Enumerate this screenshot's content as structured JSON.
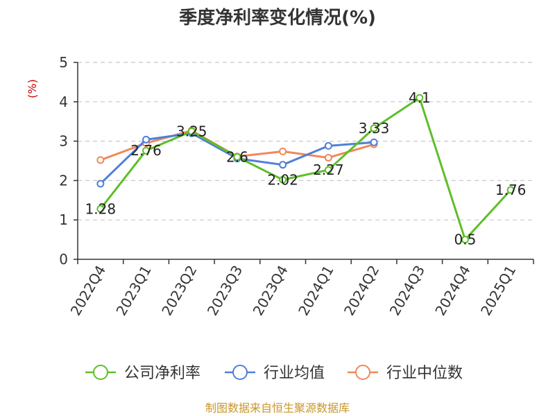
{
  "colors": {
    "company": "#5cbf26",
    "industry_avg": "#4f7fd9",
    "industry_median": "#f0885a",
    "unit": "#cc0000",
    "source": "#c9962a",
    "grid": "#c8c8c8",
    "axis": "#333333"
  },
  "source_note": "制图数据来自恒生聚源数据库",
  "chart_data": {
    "type": "line",
    "title": "季度净利率变化情况(%)",
    "ylabel": "(%)",
    "xlabel": "",
    "ylim": [
      0,
      5
    ],
    "yticks": [
      0,
      1,
      2,
      3,
      4,
      5
    ],
    "grid": true,
    "legend_position": "bottom",
    "categories": [
      "2022Q4",
      "2023Q1",
      "2023Q2",
      "2023Q3",
      "2023Q4",
      "2024Q1",
      "2024Q2",
      "2024Q3",
      "2024Q4",
      "2025Q1"
    ],
    "series": [
      {
        "name": "公司净利率",
        "color": "#5cbf26",
        "values": [
          1.28,
          2.76,
          3.25,
          2.6,
          2.02,
          2.27,
          3.33,
          4.1,
          0.5,
          1.76
        ],
        "labels": [
          "1.28",
          "2.76",
          "3.25",
          "2.6",
          "2.02",
          "2.27",
          "3.33",
          "4.1",
          "0.5",
          "1.76"
        ]
      },
      {
        "name": "行业均值",
        "color": "#4f7fd9",
        "values": [
          1.92,
          3.04,
          3.2,
          2.56,
          2.4,
          2.88,
          2.97,
          null,
          null,
          null
        ]
      },
      {
        "name": "行业中位数",
        "color": "#f0885a",
        "values": [
          2.52,
          2.95,
          3.27,
          2.61,
          2.74,
          2.58,
          2.92,
          null,
          null,
          null
        ]
      }
    ]
  }
}
